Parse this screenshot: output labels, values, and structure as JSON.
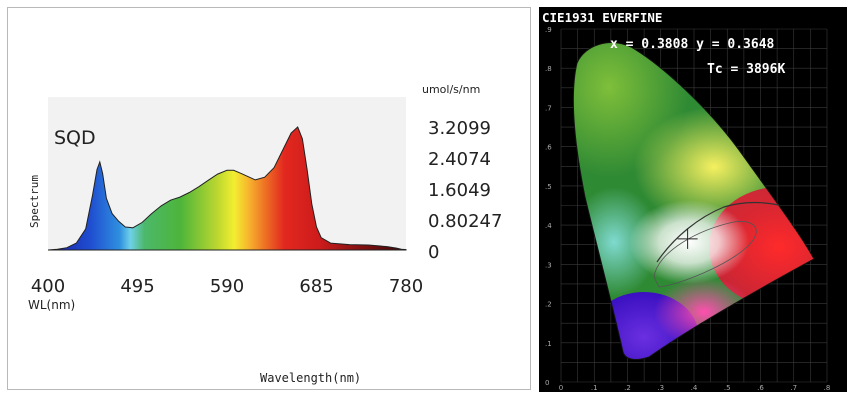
{
  "spectrum_panel": {
    "label": "SQD",
    "ylabel": "Spectrum",
    "xlabel": "WL(nm)",
    "bottom_label": "Wavelength(nm)",
    "unit_label": "umol/s/nm"
  },
  "cie_panel": {
    "title": "CIE1931 EVERFINE",
    "xy_label": "x = 0.3808 y = 0.3648",
    "tc_label": "Tc = 3896K"
  },
  "colors": {
    "spectrum_outline": "#222222",
    "axis": "#555555",
    "cie_background": "#000000",
    "cie_text": "#ffffff"
  },
  "chart_data": [
    {
      "type": "area",
      "title": "SQD",
      "xlabel": "WL(nm)",
      "ylabel": "Spectrum",
      "unit": "umol/s/nm",
      "x_ticks": [
        "400",
        "495",
        "590",
        "685",
        "780"
      ],
      "y_ticks": [
        "3.2099",
        "2.4074",
        "1.6049",
        "0.80247",
        "0"
      ],
      "xlim": [
        400,
        780
      ],
      "ylim": [
        0,
        3.2099
      ],
      "x": [
        400,
        410,
        420,
        430,
        440,
        447,
        452,
        455,
        458,
        462,
        468,
        475,
        482,
        490,
        500,
        510,
        520,
        530,
        540,
        550,
        560,
        570,
        580,
        590,
        597,
        605,
        612,
        620,
        630,
        640,
        650,
        658,
        665,
        670,
        675,
        680,
        685,
        690,
        700,
        720,
        740,
        760,
        770,
        775,
        780
      ],
      "y": [
        0,
        0.02,
        0.06,
        0.18,
        0.55,
        1.4,
        2.1,
        2.3,
        2.0,
        1.35,
        0.95,
        0.75,
        0.6,
        0.58,
        0.72,
        0.95,
        1.15,
        1.3,
        1.38,
        1.5,
        1.65,
        1.82,
        1.98,
        2.08,
        2.08,
        2.0,
        1.92,
        1.83,
        1.9,
        2.15,
        2.65,
        3.05,
        3.21,
        2.9,
        2.1,
        1.2,
        0.6,
        0.32,
        0.18,
        0.14,
        0.13,
        0.09,
        0.05,
        0.02,
        0.01
      ]
    },
    {
      "type": "scatter",
      "title": "CIE1931 EVERFINE",
      "point": {
        "x": 0.3808,
        "y": 0.3648
      },
      "cct": "3896K",
      "xlim": [
        0,
        0.8
      ],
      "ylim": [
        0,
        0.9
      ],
      "x_ticks": [
        "0",
        ".1",
        ".2",
        ".3",
        ".4",
        ".5",
        ".6",
        ".7",
        ".8"
      ],
      "y_ticks": [
        ".9",
        ".8",
        ".7",
        ".6",
        ".5",
        ".4",
        ".3",
        ".2",
        ".1",
        "0"
      ]
    }
  ]
}
